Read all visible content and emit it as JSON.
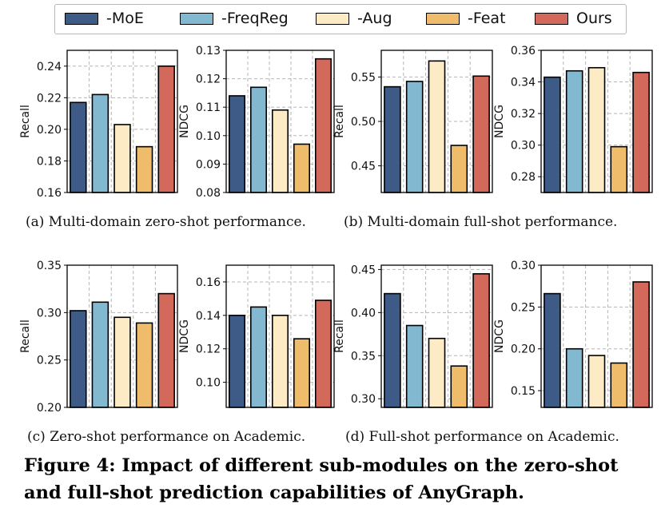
{
  "legend": [
    {
      "name": "-MoE",
      "color": "#3e5b87"
    },
    {
      "name": "-FreqReg",
      "color": "#82b8d0"
    },
    {
      "name": "-Aug",
      "color": "#fcebc5"
    },
    {
      "name": "-Feat",
      "color": "#eebc6a"
    },
    {
      "name": "Ours",
      "color": "#d2695a"
    }
  ],
  "captions": {
    "a": "(a)  Multi-domain zero-shot performance.",
    "b": "(b)  Multi-domain full-shot performance.",
    "c": "(c)  Zero-shot performance on Academic.",
    "d": "(d)  Full-shot performance on Academic."
  },
  "figure_caption": {
    "line1": "Figure 4: Impact of different sub-modules on the zero-shot",
    "line2": "and full-shot prediction capabilities of AnyGraph."
  },
  "chart_data": [
    {
      "type": "bar",
      "id": "a-recall",
      "ylabel": "Recall",
      "categories": [
        "-MoE",
        "-FreqReg",
        "-Aug",
        "-Feat",
        "Ours"
      ],
      "values": [
        0.217,
        0.222,
        0.203,
        0.189,
        0.24
      ],
      "ylim": [
        0.16,
        0.25
      ],
      "yticks": [
        0.16,
        0.18,
        0.2,
        0.22,
        0.24
      ],
      "ticklabels": [
        "0.16",
        "0.18",
        "0.20",
        "0.22",
        "0.24"
      ]
    },
    {
      "type": "bar",
      "id": "a-ndcg",
      "ylabel": "NDCG",
      "categories": [
        "-MoE",
        "-FreqReg",
        "-Aug",
        "-Feat",
        "Ours"
      ],
      "values": [
        0.114,
        0.117,
        0.109,
        0.097,
        0.127
      ],
      "ylim": [
        0.08,
        0.13
      ],
      "yticks": [
        0.08,
        0.09,
        0.1,
        0.11,
        0.12,
        0.13
      ],
      "ticklabels": [
        "0.08",
        "0.09",
        "0.10",
        "0.11",
        "0.12",
        "0.13"
      ]
    },
    {
      "type": "bar",
      "id": "b-recall",
      "ylabel": "Recall",
      "categories": [
        "-MoE",
        "-FreqReg",
        "-Aug",
        "-Feat",
        "Ours"
      ],
      "values": [
        0.539,
        0.545,
        0.568,
        0.473,
        0.551
      ],
      "ylim": [
        0.42,
        0.58
      ],
      "yticks": [
        0.45,
        0.5,
        0.55
      ],
      "ticklabels": [
        "0.45",
        "0.50",
        "0.55"
      ]
    },
    {
      "type": "bar",
      "id": "b-ndcg",
      "ylabel": "NDCG",
      "categories": [
        "-MoE",
        "-FreqReg",
        "-Aug",
        "-Feat",
        "Ours"
      ],
      "values": [
        0.343,
        0.347,
        0.349,
        0.299,
        0.346
      ],
      "ylim": [
        0.27,
        0.36
      ],
      "yticks": [
        0.28,
        0.3,
        0.32,
        0.34,
        0.36
      ],
      "ticklabels": [
        "0.28",
        "0.30",
        "0.32",
        "0.34",
        "0.36"
      ]
    },
    {
      "type": "bar",
      "id": "c-recall",
      "ylabel": "Recall",
      "categories": [
        "-MoE",
        "-FreqReg",
        "-Aug",
        "-Feat",
        "Ours"
      ],
      "values": [
        0.302,
        0.311,
        0.295,
        0.289,
        0.32
      ],
      "ylim": [
        0.2,
        0.35
      ],
      "yticks": [
        0.2,
        0.25,
        0.3,
        0.35
      ],
      "ticklabels": [
        "0.20",
        "0.25",
        "0.30",
        "0.35"
      ]
    },
    {
      "type": "bar",
      "id": "c-ndcg",
      "ylabel": "NDCG",
      "categories": [
        "-MoE",
        "-FreqReg",
        "-Aug",
        "-Feat",
        "Ours"
      ],
      "values": [
        0.14,
        0.145,
        0.14,
        0.126,
        0.149
      ],
      "ylim": [
        0.085,
        0.17
      ],
      "yticks": [
        0.1,
        0.12,
        0.14,
        0.16
      ],
      "ticklabels": [
        "0.10",
        "0.12",
        "0.14",
        "0.16"
      ]
    },
    {
      "type": "bar",
      "id": "d-recall",
      "ylabel": "Recall",
      "categories": [
        "-MoE",
        "-FreqReg",
        "-Aug",
        "-Feat",
        "Ours"
      ],
      "values": [
        0.422,
        0.385,
        0.37,
        0.338,
        0.445
      ],
      "ylim": [
        0.29,
        0.455
      ],
      "yticks": [
        0.3,
        0.35,
        0.4,
        0.45
      ],
      "ticklabels": [
        "0.30",
        "0.35",
        "0.40",
        "0.45"
      ]
    },
    {
      "type": "bar",
      "id": "d-ndcg",
      "ylabel": "NDCG",
      "categories": [
        "-MoE",
        "-FreqReg",
        "-Aug",
        "-Feat",
        "Ours"
      ],
      "values": [
        0.266,
        0.2,
        0.192,
        0.183,
        0.28
      ],
      "ylim": [
        0.13,
        0.3
      ],
      "yticks": [
        0.15,
        0.2,
        0.25,
        0.3
      ],
      "ticklabels": [
        "0.15",
        "0.20",
        "0.25",
        "0.30"
      ]
    }
  ]
}
